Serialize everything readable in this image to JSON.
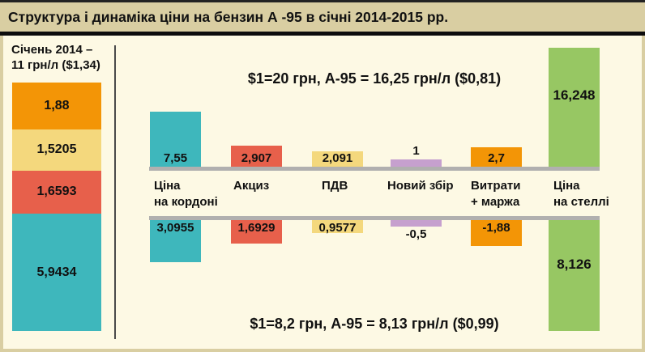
{
  "title": "Структура і динаміка ціни на бензин А -95 в січні 2014-2015 рр.",
  "palette": {
    "teal": "#3EB7BC",
    "red": "#E7604B",
    "yellow": "#F4D87D",
    "purple": "#C6A0CE",
    "orange": "#F39506",
    "green": "#97C763",
    "axis_gray": "#B1B0AF",
    "background_cream": "#FDF9E4",
    "frame_tan": "#D9CEA2",
    "text_black": "#111111"
  },
  "chart_data": [
    {
      "type": "bar",
      "subtype": "single-stacked-column",
      "heading_line1": "Січень 2014 –",
      "heading_line2": "11 грн/л ($1,34)",
      "total": 11,
      "segments": [
        {
          "label": "1,88",
          "value": 1.88,
          "color_key": "orange"
        },
        {
          "label": "1,5205",
          "value": 1.5205,
          "color_key": "yellow"
        },
        {
          "label": "1,6593",
          "value": 1.6593,
          "color_key": "red"
        },
        {
          "label": "5,9434",
          "value": 5.9434,
          "color_key": "teal"
        }
      ]
    },
    {
      "type": "bar",
      "subtype": "mirrored-waterfall",
      "categories": [
        "Ціна\nна кордоні",
        "Акциз",
        "ПДВ",
        "Новий збір",
        "Витрати\n+ маржа",
        "Ціна\nна стеллі"
      ],
      "column_color_keys": [
        "teal",
        "red",
        "yellow",
        "purple",
        "orange",
        "green"
      ],
      "series": [
        {
          "name": "upper",
          "annotation": "$1=20 грн, А-95 = 16,25 грн/л ($0,81)",
          "direction": "up",
          "values": [
            7.55,
            2.907,
            2.091,
            1,
            2.7,
            16.248
          ],
          "labels": [
            "7,55",
            "2,907",
            "2,091",
            "1",
            "2,7",
            "16,248"
          ],
          "total": 16.248
        },
        {
          "name": "lower",
          "annotation": "$1=8,2 грн, А-95 = 8,13 грн/л ($0,99)",
          "direction": "down",
          "values": [
            3.0955,
            1.6929,
            0.9577,
            -0.5,
            -1.88,
            8.126
          ],
          "labels": [
            "3,0955",
            "1,6929",
            "0,9577",
            "-0,5",
            "-1,88",
            "8,126"
          ],
          "total": 8.126
        }
      ]
    }
  ]
}
